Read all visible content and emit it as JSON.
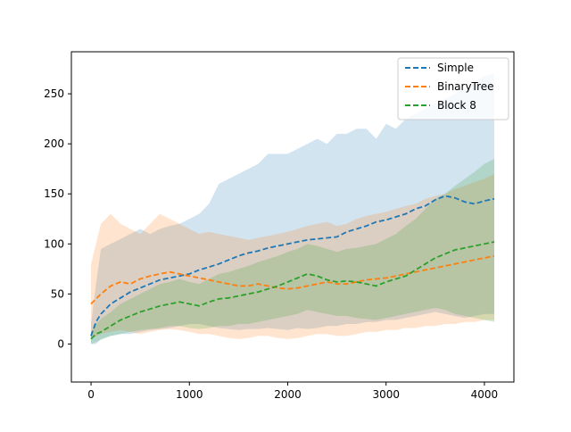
{
  "chart_data": {
    "type": "line",
    "title": "",
    "xlabel": "",
    "ylabel": "",
    "xlim": [
      -200,
      4300
    ],
    "ylim": [
      -38,
      292
    ],
    "xticks": [
      0,
      1000,
      2000,
      3000,
      4000
    ],
    "yticks": [
      0,
      50,
      100,
      150,
      200,
      250
    ],
    "xtick_labels": [
      "0",
      "1000",
      "2000",
      "3000",
      "4000"
    ],
    "ytick_labels": [
      "0",
      "50",
      "100",
      "150",
      "200",
      "250"
    ],
    "grid": false,
    "legend_position": "top-right",
    "line_style": "dashed",
    "series": [
      {
        "name": "Simple",
        "color": "#1f77b4",
        "x": [
          0,
          50,
          100,
          200,
          300,
          400,
          500,
          600,
          700,
          800,
          900,
          1000,
          1100,
          1200,
          1300,
          1400,
          1500,
          1600,
          1700,
          1800,
          1900,
          2000,
          2100,
          2200,
          2300,
          2400,
          2500,
          2600,
          2700,
          2800,
          2900,
          3000,
          3100,
          3200,
          3300,
          3400,
          3500,
          3600,
          3700,
          3800,
          3900,
          4000,
          4100
        ],
        "values": [
          8,
          22,
          30,
          40,
          46,
          52,
          56,
          60,
          64,
          66,
          68,
          70,
          74,
          77,
          80,
          84,
          88,
          91,
          93,
          96,
          98,
          100,
          102,
          104,
          105,
          106,
          107,
          112,
          115,
          118,
          122,
          124,
          127,
          130,
          135,
          138,
          144,
          148,
          146,
          142,
          140,
          143,
          145
        ],
        "band_upper": [
          20,
          60,
          95,
          100,
          105,
          110,
          115,
          110,
          115,
          118,
          120,
          125,
          130,
          140,
          160,
          165,
          170,
          175,
          180,
          190,
          190,
          190,
          195,
          200,
          205,
          200,
          210,
          210,
          215,
          215,
          205,
          220,
          215,
          225,
          230,
          235,
          240,
          245,
          250,
          255,
          262,
          268,
          270
        ],
        "band_lower": [
          0,
          0,
          5,
          8,
          10,
          10,
          12,
          14,
          15,
          16,
          18,
          20,
          20,
          18,
          16,
          15,
          14,
          15,
          15,
          16,
          15,
          14,
          16,
          15,
          16,
          18,
          18,
          20,
          20,
          22,
          22,
          24,
          24,
          26,
          28,
          30,
          32,
          30,
          28,
          26,
          28,
          30,
          30
        ]
      },
      {
        "name": "BinaryTree",
        "color": "#ff7f0e",
        "x": [
          0,
          100,
          200,
          300,
          400,
          500,
          600,
          700,
          800,
          900,
          1000,
          1100,
          1200,
          1300,
          1400,
          1500,
          1600,
          1700,
          1800,
          1900,
          2000,
          2100,
          2200,
          2300,
          2400,
          2500,
          2600,
          2700,
          2800,
          2900,
          3000,
          3100,
          3200,
          3300,
          3400,
          3500,
          3600,
          3700,
          3800,
          3900,
          4000,
          4100
        ],
        "values": [
          40,
          50,
          58,
          62,
          60,
          65,
          68,
          70,
          72,
          70,
          68,
          66,
          64,
          62,
          60,
          58,
          58,
          60,
          58,
          56,
          55,
          56,
          58,
          60,
          62,
          60,
          60,
          62,
          64,
          65,
          66,
          68,
          70,
          72,
          74,
          76,
          78,
          80,
          82,
          84,
          86,
          88
        ],
        "band_upper": [
          80,
          120,
          130,
          120,
          115,
          110,
          120,
          130,
          125,
          120,
          115,
          110,
          112,
          110,
          108,
          106,
          104,
          106,
          108,
          110,
          112,
          115,
          118,
          120,
          122,
          118,
          120,
          125,
          128,
          130,
          132,
          135,
          138,
          140,
          145,
          148,
          150,
          155,
          158,
          162,
          165,
          170
        ],
        "band_lower": [
          5,
          10,
          12,
          14,
          12,
          10,
          12,
          14,
          15,
          14,
          12,
          10,
          10,
          8,
          6,
          5,
          6,
          8,
          8,
          6,
          5,
          6,
          8,
          10,
          10,
          8,
          8,
          10,
          12,
          12,
          14,
          14,
          16,
          16,
          18,
          18,
          20,
          20,
          22,
          22,
          24,
          24
        ]
      },
      {
        "name": "Block 8",
        "color": "#2ca02c",
        "x": [
          0,
          50,
          100,
          200,
          300,
          400,
          500,
          600,
          700,
          800,
          900,
          1000,
          1100,
          1200,
          1300,
          1400,
          1500,
          1600,
          1700,
          1800,
          1900,
          2000,
          2100,
          2200,
          2300,
          2400,
          2500,
          2600,
          2700,
          2800,
          2900,
          3000,
          3100,
          3200,
          3300,
          3400,
          3500,
          3600,
          3700,
          3800,
          3900,
          4000,
          4100
        ],
        "values": [
          5,
          10,
          12,
          18,
          24,
          28,
          32,
          35,
          38,
          40,
          42,
          40,
          38,
          42,
          45,
          46,
          48,
          50,
          52,
          55,
          58,
          62,
          66,
          70,
          68,
          64,
          62,
          63,
          62,
          60,
          58,
          62,
          65,
          68,
          74,
          80,
          86,
          90,
          94,
          96,
          98,
          100,
          102
        ],
        "band_upper": [
          12,
          20,
          25,
          32,
          40,
          45,
          50,
          55,
          60,
          62,
          65,
          62,
          60,
          65,
          70,
          72,
          75,
          78,
          82,
          85,
          88,
          92,
          95,
          100,
          98,
          95,
          92,
          95,
          96,
          98,
          100,
          105,
          110,
          118,
          125,
          135,
          145,
          150,
          158,
          165,
          172,
          180,
          185
        ],
        "band_lower": [
          0,
          2,
          4,
          8,
          10,
          12,
          14,
          15,
          16,
          18,
          18,
          16,
          15,
          16,
          18,
          18,
          20,
          20,
          22,
          24,
          26,
          28,
          30,
          34,
          32,
          30,
          28,
          28,
          26,
          25,
          24,
          26,
          28,
          30,
          32,
          34,
          36,
          34,
          30,
          28,
          26,
          24,
          22
        ]
      }
    ]
  }
}
